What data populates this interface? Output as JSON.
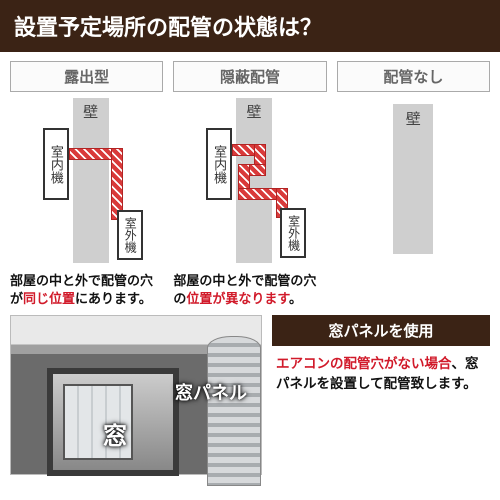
{
  "header": {
    "title": "設置予定場所の配管の状態は？"
  },
  "types": [
    {
      "label": "露出型",
      "wall_label": "壁",
      "indoor_label": "室内機",
      "outdoor_label": "室外機",
      "caption_pre": "部屋の中と外で配管の穴が",
      "caption_hl": "同じ位置",
      "caption_post": "にあります。"
    },
    {
      "label": "隠蔽配管",
      "wall_label": "壁",
      "indoor_label": "室内機",
      "outdoor_label": "室外機",
      "caption_pre": "部屋の中と外で配管の穴の",
      "caption_hl": "位置が異なります",
      "caption_post": "。"
    },
    {
      "label": "配管なし",
      "wall_label": "壁"
    }
  ],
  "photo": {
    "window_label": "窓",
    "panel_label": "窓パネル"
  },
  "panel": {
    "head": "窓パネルを使用",
    "text_hl": "エアコンの配管穴がない場合",
    "text_post": "、窓パネルを設置して配管致します。"
  },
  "colors": {
    "header_bg": "#3b2315",
    "wall": "#cfcfcf",
    "pipe_red": "#d93a3a",
    "highlight": "#d11a2a"
  }
}
